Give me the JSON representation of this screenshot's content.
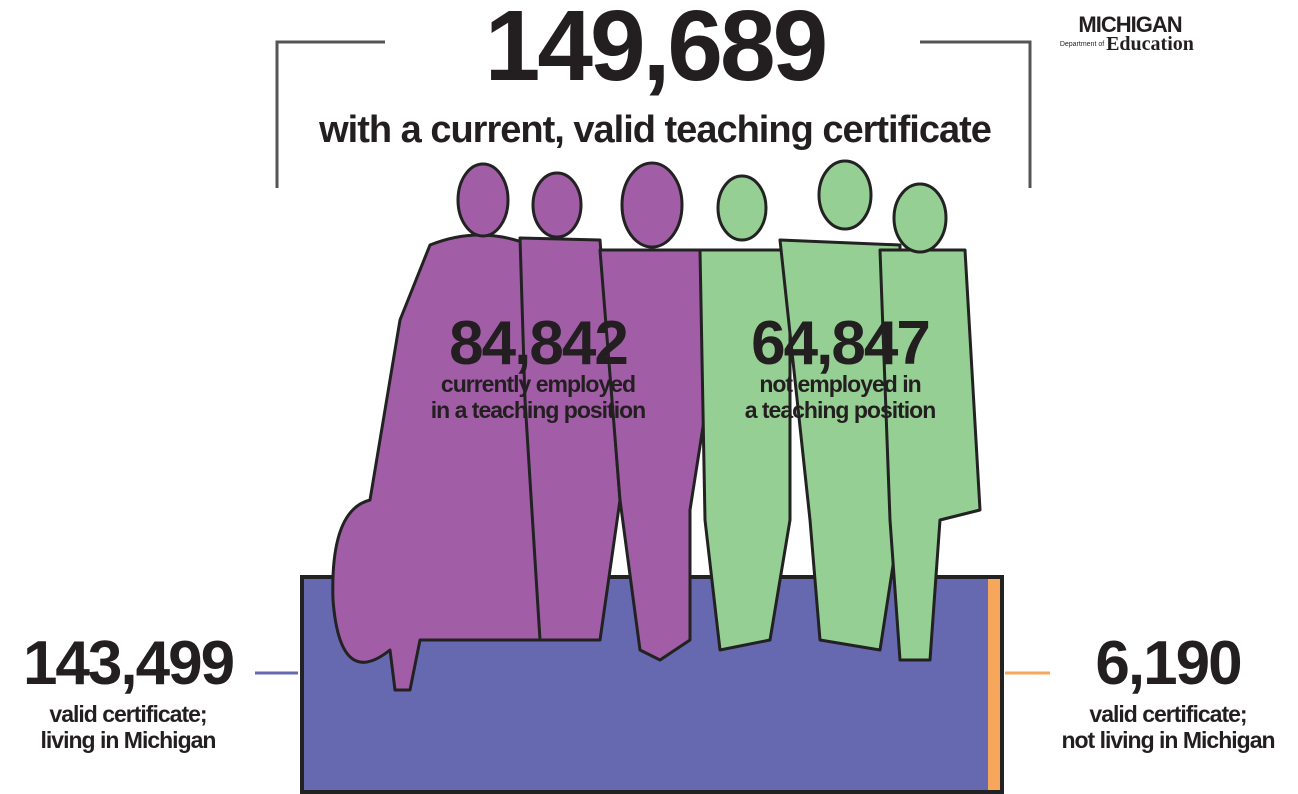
{
  "total": {
    "value": "149,689",
    "label": "with a current, valid teaching certificate"
  },
  "employed": {
    "value": "84,842",
    "label": [
      "currently employed",
      "in a teaching position"
    ]
  },
  "not_employed": {
    "value": "64,847",
    "label": [
      "not employed in",
      "a teaching position"
    ]
  },
  "in_state": {
    "value": "143,499",
    "label": [
      "valid certificate;",
      "living in Michigan"
    ]
  },
  "out_of_state": {
    "value": "6,190",
    "label": [
      "valid certificate;",
      "not living in Michigan"
    ]
  },
  "logo": {
    "name": "MICHIGAN",
    "department": "Department of",
    "agency": "Education"
  }
}
